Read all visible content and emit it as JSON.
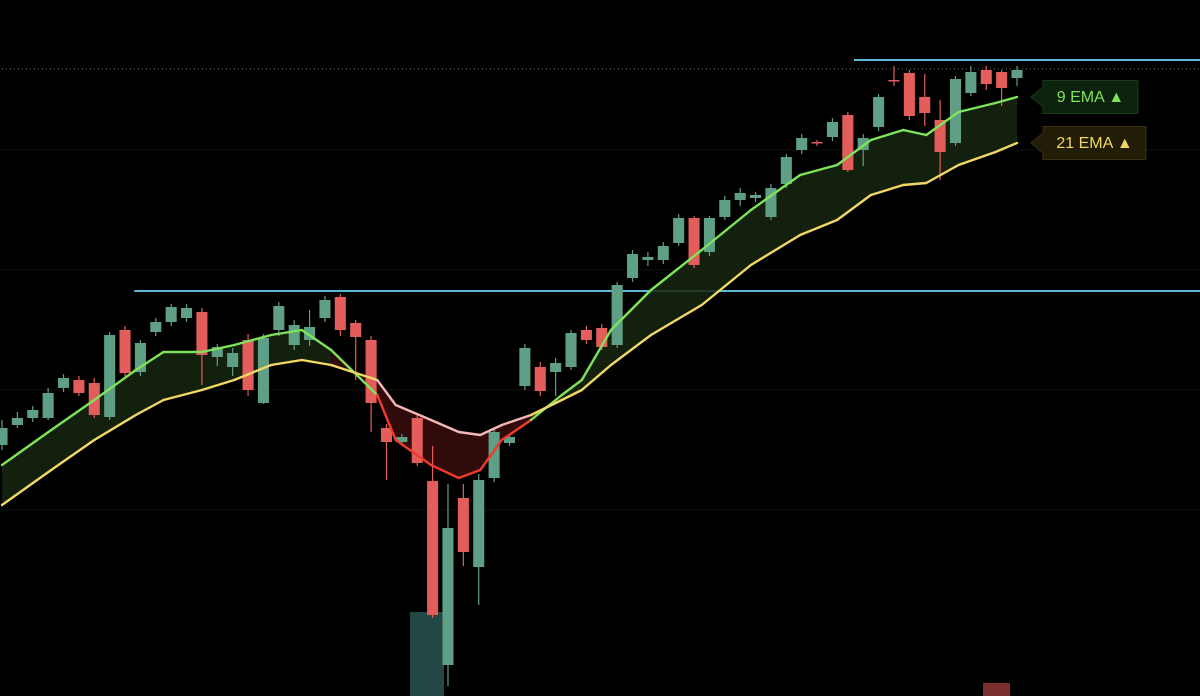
{
  "chart_data": {
    "type": "candlestick",
    "categories": [
      null,
      null,
      null,
      null,
      null,
      null,
      null,
      null,
      null,
      null,
      null,
      null,
      null,
      null,
      null,
      null,
      null,
      null,
      null,
      null,
      null,
      null,
      null,
      null,
      null,
      null,
      null,
      null,
      null,
      null,
      null,
      null,
      null,
      null,
      null,
      null,
      null,
      null,
      null,
      null,
      null,
      null,
      null,
      null,
      null,
      null,
      null,
      null,
      null,
      null,
      null,
      null,
      null,
      null,
      null,
      null,
      null,
      null,
      null,
      null,
      null,
      null,
      null,
      null,
      null,
      null,
      null
    ],
    "open": [
      251,
      271,
      278,
      278,
      308,
      316,
      313,
      279,
      366,
      324,
      364,
      374,
      378,
      384,
      339,
      329,
      356,
      293,
      366,
      351,
      356,
      378,
      399,
      373,
      356,
      268,
      254,
      278,
      215,
      31,
      198,
      129,
      218,
      253,
      310,
      329,
      324,
      329,
      366,
      368,
      351,
      418,
      436,
      436,
      453,
      478,
      444,
      479,
      496,
      498,
      479,
      512,
      546,
      554,
      559,
      581,
      546,
      569,
      616,
      623,
      599,
      576,
      553,
      603,
      626,
      624,
      618
    ],
    "high": [
      276,
      284,
      290,
      308,
      322,
      320,
      318,
      364,
      370,
      356,
      378,
      392,
      392,
      388,
      352,
      348,
      362,
      362,
      394,
      376,
      386,
      400,
      402,
      376,
      360,
      272,
      262,
      282,
      250,
      212,
      212,
      222,
      268,
      262,
      352,
      334,
      338,
      366,
      370,
      372,
      414,
      446,
      444,
      454,
      482,
      480,
      480,
      500,
      508,
      504,
      512,
      542,
      562,
      556,
      578,
      584,
      562,
      602,
      630,
      626,
      622,
      596,
      620,
      630,
      630,
      626,
      630
    ],
    "low": [
      246,
      268,
      274,
      276,
      304,
      300,
      278,
      276,
      320,
      320,
      360,
      370,
      374,
      311,
      330,
      320,
      300,
      292,
      360,
      346,
      350,
      374,
      360,
      316,
      264,
      216,
      250,
      230,
      78,
      10,
      130,
      91,
      214,
      250,
      306,
      300,
      300,
      326,
      352,
      346,
      348,
      414,
      430,
      432,
      450,
      428,
      440,
      476,
      490,
      494,
      476,
      508,
      542,
      550,
      555,
      524,
      530,
      565,
      610,
      576,
      570,
      516,
      550,
      600,
      606,
      590,
      610
    ],
    "close": [
      268,
      278,
      286,
      303,
      318,
      303,
      281,
      361,
      323,
      353,
      374,
      389,
      388,
      341,
      349,
      343,
      306,
      358,
      390,
      371,
      369,
      396,
      366,
      359,
      293,
      254,
      259,
      233,
      81,
      168,
      144,
      216,
      264,
      259,
      348,
      305,
      333,
      363,
      356,
      349,
      411,
      442,
      439,
      450,
      478,
      431,
      478,
      496,
      503,
      501,
      508,
      539,
      558,
      553,
      574,
      526,
      558,
      599,
      615,
      580,
      583,
      544,
      617,
      624,
      612,
      608,
      626
    ],
    "up_color": "#5e9f86",
    "down_color": "#e35d5b",
    "xlim": [
      0,
      66
    ],
    "ylim": [
      0,
      696
    ],
    "overlays": [
      {
        "name": "9 EMA ▲",
        "color": "#7ee35a",
        "bear_color": "#f03a2c",
        "x": [
          0,
          3.2,
          6,
          8.7,
          10.5,
          13,
          15.1,
          17.5,
          19.5,
          21.4,
          24.4,
          25.6,
          27.9,
          29.7,
          31.1,
          32.5,
          34.4,
          36.4,
          37.7,
          39.6,
          42.2,
          45.5,
          48.7,
          51.9,
          54.3,
          56.5,
          58.6,
          60.1,
          62.2,
          64.6,
          66
        ],
        "values": [
          231,
          266,
          296,
          326,
          344,
          344,
          351,
          361,
          366,
          346,
          301,
          256,
          231,
          218,
          226,
          256,
          276,
          301,
          316,
          366,
          406,
          446,
          486,
          521,
          531,
          556,
          566,
          561,
          584,
          593,
          599
        ]
      },
      {
        "name": "21 EMA ▲",
        "color": "#f2d764",
        "bear_color": "#f3b7b7",
        "x": [
          0,
          3.2,
          6,
          8.7,
          10.5,
          13,
          15.1,
          17.5,
          19.5,
          21.4,
          24.4,
          25.6,
          27.9,
          29.7,
          31.1,
          32.5,
          34.4,
          36.4,
          37.7,
          39.6,
          42.2,
          45.5,
          48.7,
          51.9,
          54.3,
          56.5,
          58.6,
          60.1,
          62.2,
          64.6,
          66
        ],
        "values": [
          191,
          226,
          256,
          281,
          296,
          306,
          316,
          331,
          336,
          331,
          316,
          291,
          276,
          264,
          261,
          271,
          281,
          296,
          306,
          331,
          361,
          391,
          431,
          461,
          476,
          501,
          511,
          513,
          531,
          544,
          553
        ]
      }
    ],
    "hlines": [
      {
        "value": 636,
        "x0": 55.4,
        "color": "#5cb8d8",
        "style": "solid"
      },
      {
        "value": 405,
        "x0": 8.6,
        "color": "#5cb8d8",
        "style": "solid"
      },
      {
        "value": 627,
        "x0": 0,
        "color": "#6b6b6b",
        "style": "dotted"
      }
    ]
  }
}
